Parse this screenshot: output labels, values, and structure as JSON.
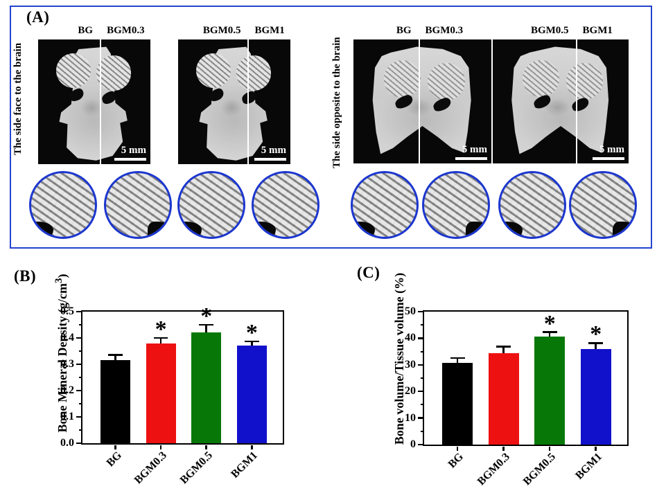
{
  "figure": {
    "panel_a_label": "(A)",
    "panel_b_label": "(B)",
    "panel_c_label": "(C)"
  },
  "panel_a": {
    "border_color": "#2343d0",
    "inset_border_color": "#1b36cf",
    "groups": [
      {
        "side_label": "The side face to the brain",
        "panels": [
          {
            "left_label": "BG",
            "right_label": "BGM0.3",
            "scale_bar": "5 mm"
          },
          {
            "left_label": "BGM0.5",
            "right_label": "BGM1",
            "scale_bar": "5 mm"
          }
        ]
      },
      {
        "side_label": "The side opposite to the brain",
        "panels": [
          {
            "left_label": "BG",
            "right_label": "BGM0.3",
            "scale_bar": "5 mm"
          },
          {
            "left_label": "BGM0.5",
            "right_label": "BGM1",
            "scale_bar": "5 mm"
          }
        ]
      }
    ]
  },
  "chart_data": [
    {
      "id": "bone-mineral-density",
      "type": "bar",
      "panel": "B",
      "title": "",
      "xlabel": "",
      "ylabel": {
        "prefix": "Bone Mineral Density (g/cm",
        "sup": "3",
        "suffix": ")"
      },
      "categories": [
        "BG",
        "BGM0.3",
        "BGM0.5",
        "BGM1"
      ],
      "values": [
        0.315,
        0.38,
        0.42,
        0.37
      ],
      "errors_plus": [
        0.02,
        0.02,
        0.03,
        0.017
      ],
      "significance": [
        "",
        "*",
        "*",
        "*"
      ],
      "bar_colors": [
        "#000000",
        "#ee1111",
        "#077807",
        "#1111cc"
      ],
      "ylim": [
        0,
        0.5
      ],
      "yticks": [
        0,
        0.1,
        0.2,
        0.3,
        0.4,
        0.5
      ],
      "ytick_labels": [
        "0.0",
        "0.1",
        "0.2",
        "0.3",
        "0.4",
        "0.5"
      ],
      "grid": false,
      "legend": "none"
    },
    {
      "id": "bone-volume-tissue-volume",
      "type": "bar",
      "panel": "C",
      "title": "",
      "xlabel": "",
      "ylabel": {
        "prefix": "Bone volume/Tissue volume (%)",
        "sup": "",
        "suffix": ""
      },
      "categories": [
        "BG",
        "BGM0.3",
        "BGM0.5",
        "BGM1"
      ],
      "values": [
        30.7,
        34.4,
        40.6,
        36
      ],
      "errors_plus": [
        1.8,
        2.5,
        1.7,
        2.2
      ],
      "significance": [
        "",
        "",
        "*",
        "*"
      ],
      "bar_colors": [
        "#000000",
        "#ee1111",
        "#077807",
        "#1111cc"
      ],
      "ylim": [
        0,
        50
      ],
      "yticks": [
        0,
        10,
        20,
        30,
        40,
        50
      ],
      "ytick_labels": [
        "0",
        "10",
        "20",
        "30",
        "40",
        "50"
      ],
      "grid": false,
      "legend": "none"
    }
  ]
}
